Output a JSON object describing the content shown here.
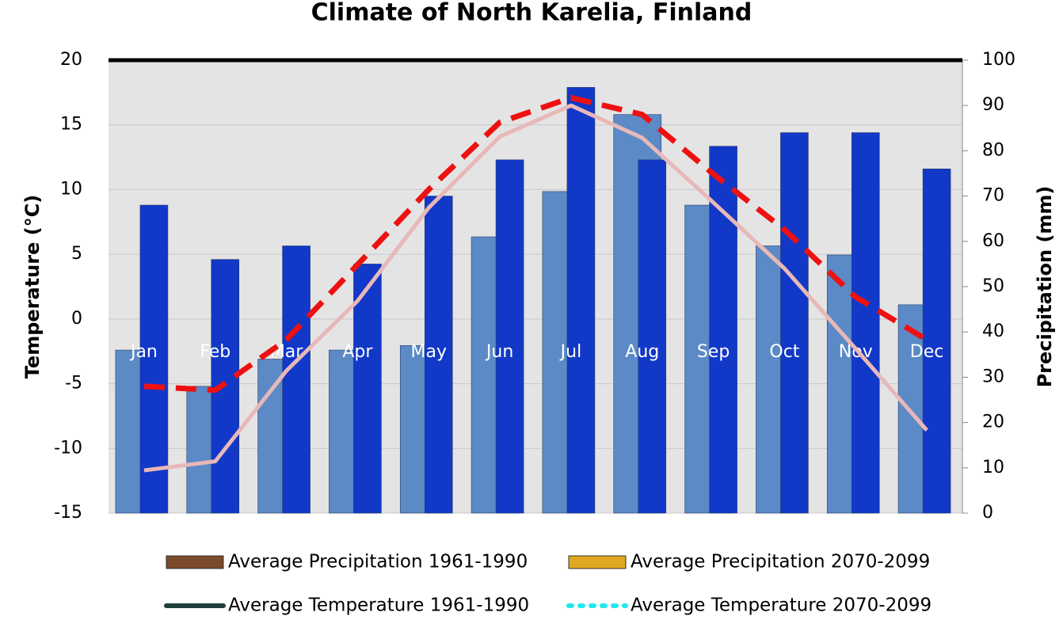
{
  "chart_data": {
    "type": "bar-line",
    "title": "Climate of North Karelia, Finland",
    "y_label": "Temperature (°C)",
    "y2_label": "Precipitation (mm)",
    "categories": [
      "Jan",
      "Feb",
      "Mar",
      "Apr",
      "May",
      "Jun",
      "Jul",
      "Aug",
      "Sep",
      "Oct",
      "Nov",
      "Dec"
    ],
    "ylim": [
      -15,
      20
    ],
    "yticks": [
      -15,
      -10,
      -5,
      0,
      5,
      10,
      15,
      20
    ],
    "y2lim": [
      0,
      100
    ],
    "y2ticks": [
      0,
      10,
      20,
      30,
      40,
      50,
      60,
      70,
      80,
      90,
      100
    ],
    "grid": true,
    "series": [
      {
        "name": "Average Precipitation 1961-1990",
        "kind": "bar",
        "axis": "y2",
        "color": "#5b8ac6",
        "legend_color": "#7a4a2a",
        "values": [
          36,
          28,
          34,
          36,
          37,
          61,
          71,
          88,
          68,
          59,
          57,
          46
        ]
      },
      {
        "name": "Average Precipitation 2070-2099",
        "kind": "bar",
        "axis": "y2",
        "color": "#1238c8",
        "legend_color": "#e0a820",
        "values": [
          68,
          56,
          59,
          55,
          70,
          78,
          94,
          78,
          81,
          84,
          84,
          76
        ]
      },
      {
        "name": "Average Temperature 1961-1990",
        "kind": "line",
        "axis": "y",
        "color": "#e8b8b8",
        "legend_color": "#1f3f3a",
        "values": [
          -11.7,
          -11,
          -4,
          1.4,
          8.6,
          14.1,
          16.5,
          14,
          9,
          3.9,
          -2.3,
          -8.6
        ]
      },
      {
        "name": "Average Temperature 2070-2099",
        "kind": "dashed-line",
        "axis": "y",
        "color": "#ee1111",
        "legend_color": "#22e8f0",
        "values": [
          -5.2,
          -5.5,
          -1.6,
          4.2,
          10,
          15.2,
          17.1,
          15.8,
          11.2,
          6.9,
          1.7,
          -1.6
        ]
      }
    ]
  }
}
